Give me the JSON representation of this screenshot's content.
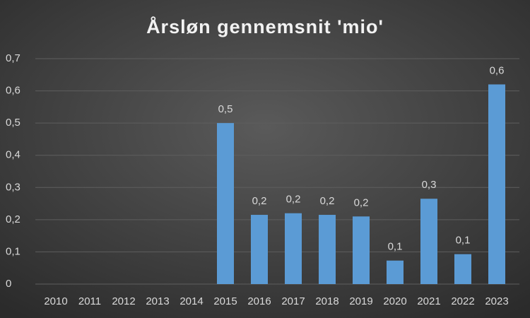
{
  "chart_data": {
    "type": "bar",
    "title": "Årsløn gennemsnit 'mio'",
    "categories": [
      "2010",
      "2011",
      "2012",
      "2013",
      "2014",
      "2015",
      "2016",
      "2017",
      "2018",
      "2019",
      "2020",
      "2021",
      "2022",
      "2023"
    ],
    "values": [
      null,
      null,
      null,
      null,
      null,
      0.5,
      0.215,
      0.22,
      0.215,
      0.21,
      0.073,
      0.265,
      0.093,
      0.62
    ],
    "value_labels": [
      null,
      null,
      null,
      null,
      null,
      "0,5",
      "0,2",
      "0,2",
      "0,2",
      "0,2",
      "0,1",
      "0,3",
      "0,1",
      "0,6"
    ],
    "color": "#5b9bd5",
    "ylim": [
      0,
      0.7
    ],
    "yticks": [
      0,
      {
        "value": 0.1,
        "label": "0,1"
      },
      {
        "value": 0.2,
        "label": "0,2"
      },
      {
        "value": 0.3,
        "label": "0,3"
      },
      {
        "value": 0.4,
        "label": "0,4"
      },
      {
        "value": 0.5,
        "label": "0,5"
      },
      {
        "value": 0.6,
        "label": "0,6"
      },
      {
        "value": 0.7,
        "label": "0,7"
      }
    ],
    "grid": true
  }
}
